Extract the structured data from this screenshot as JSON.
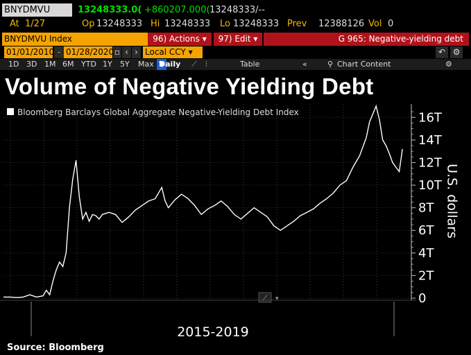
{
  "header": {
    "ticker": "BNYDMVU",
    "last": "13248333.0(",
    "change": "+860207.000(",
    "last_repeat": "13248333/--",
    "at_label": "At",
    "at_value": "1/27",
    "op_label": "Op",
    "op_value": "13248333",
    "hi_label": "Hi",
    "hi_value": "13248333",
    "lo_label": "Lo",
    "lo_value": "13248333",
    "prev_label": "Prev",
    "prev_value": "12388126",
    "vol_label": "Vol",
    "vol_value": "0"
  },
  "toolbar": {
    "index_label": "BNYDMVU Index",
    "actions_label": "96) Actions",
    "edit_label": "97) Edit",
    "function_label": "G 965: Negative-yielding debt",
    "start_date": "01/01/2010",
    "end_date": "01/28/2020",
    "currency": "Local CCY",
    "ranges": [
      "1D",
      "3D",
      "1M",
      "6M",
      "YTD",
      "1Y",
      "5Y",
      "Max"
    ],
    "frequency": "Daily",
    "table_label": "Table",
    "chart_content_label": "Chart Content"
  },
  "colors": {
    "line": "#ffffff",
    "background": "#000000",
    "accent_orange": "#f5a300",
    "accent_red": "#b0121b",
    "green": "#00e000"
  },
  "chart_data": {
    "type": "line",
    "title": "Volume of Negative Yielding Debt",
    "legend": "Bloomberg Barclays Global Aggregate Negative-Yielding Debt Index",
    "xlabel": "2015-2019",
    "ylabel": "U.S. dollars",
    "ylim": [
      0,
      17
    ],
    "yticks": [
      "0",
      "2T",
      "4T",
      "6T",
      "8T",
      "10T",
      "12T",
      "14T",
      "16T"
    ],
    "ytick_values": [
      0,
      2,
      4,
      6,
      8,
      10,
      12,
      14,
      16
    ],
    "series": [
      {
        "name": "Bloomberg Barclays Global Aggregate Negative-Yielding Debt Index",
        "unit": "trillion USD",
        "x": [
          2014.0,
          2014.1,
          2014.2,
          2014.3,
          2014.4,
          2014.5,
          2014.6,
          2014.65,
          2014.7,
          2014.75,
          2014.8,
          2014.85,
          2014.9,
          2014.95,
          2015.0,
          2015.05,
          2015.1,
          2015.15,
          2015.2,
          2015.25,
          2015.3,
          2015.35,
          2015.4,
          2015.45,
          2015.5,
          2015.6,
          2015.7,
          2015.8,
          2015.9,
          2016.0,
          2016.1,
          2016.2,
          2016.3,
          2016.4,
          2016.45,
          2016.5,
          2016.6,
          2016.7,
          2016.8,
          2016.9,
          2017.0,
          2017.1,
          2017.2,
          2017.3,
          2017.4,
          2017.5,
          2017.6,
          2017.7,
          2017.8,
          2017.9,
          2018.0,
          2018.1,
          2018.2,
          2018.3,
          2018.4,
          2018.5,
          2018.6,
          2018.7,
          2018.8,
          2018.9,
          2019.0,
          2019.1,
          2019.2,
          2019.3,
          2019.4,
          2019.5,
          2019.55,
          2019.6,
          2019.65,
          2019.7,
          2019.75,
          2019.8,
          2019.85,
          2019.9,
          2019.95,
          2020.0,
          2020.05
        ],
        "values": [
          0.1,
          0.1,
          0.05,
          0.1,
          0.3,
          0.1,
          0.2,
          0.7,
          0.3,
          1.5,
          2.5,
          3.2,
          2.8,
          4.0,
          8.0,
          10.5,
          12.2,
          9.0,
          7.0,
          7.6,
          6.8,
          7.4,
          7.3,
          7.0,
          7.4,
          7.6,
          7.4,
          6.7,
          7.2,
          7.8,
          8.2,
          8.6,
          8.8,
          9.8,
          8.6,
          8.0,
          8.7,
          9.2,
          8.8,
          8.2,
          7.4,
          7.9,
          8.2,
          8.6,
          8.1,
          7.4,
          7.0,
          7.5,
          8.0,
          7.6,
          7.2,
          6.4,
          6.0,
          6.4,
          6.8,
          7.3,
          7.6,
          7.9,
          8.4,
          8.8,
          9.3,
          10.0,
          10.4,
          11.6,
          12.6,
          14.2,
          15.6,
          16.3,
          17.0,
          15.8,
          14.0,
          13.5,
          12.8,
          12.0,
          11.6,
          11.2,
          13.2
        ]
      }
    ],
    "x_axis_range": [
      2014.0,
      2020.1
    ],
    "source": "Source: Bloomberg"
  }
}
